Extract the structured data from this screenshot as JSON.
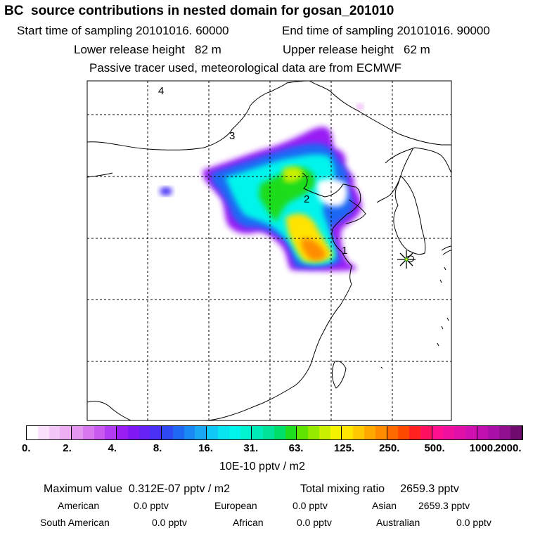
{
  "title": "BC  source contributions in nested domain for gosan_201010",
  "header": {
    "start": "Start time of sampling 20101016. 60000",
    "end": "End time of sampling 20101016. 90000",
    "lower": "Lower release height   82 m",
    "upper": "Upper release height   62 m",
    "tracer": "Passive tracer used, meteorological data are from ECMWF"
  },
  "map": {
    "markers": [
      "1",
      "2",
      "3",
      "4"
    ],
    "receptor_icon": "star-marker-icon"
  },
  "colorbar": {
    "ticks": [
      "0.",
      "2.",
      "4.",
      "8.",
      "16.",
      "31.",
      "63.",
      "125.",
      "250.",
      "500.",
      "1000.",
      "2000."
    ],
    "unit": "10E-10 pptv / m2",
    "colors": [
      [
        "#ffffff",
        "#fae0fb",
        "#f4c8f6",
        "#eeaff2"
      ],
      [
        "#e596f0",
        "#d878f0",
        "#c85af0",
        "#b23cf2"
      ],
      [
        "#9a1ef4",
        "#8018f4",
        "#6622f4",
        "#4a30f4"
      ],
      [
        "#2e48f4",
        "#1e68f4",
        "#1a88f4",
        "#1aa8f4"
      ],
      [
        "#10c8f4",
        "#08e4f0",
        "#00f4ec",
        "#00f2d0"
      ],
      [
        "#00eab8",
        "#00e49a",
        "#00de6a",
        "#1edc1e"
      ],
      [
        "#5ee400",
        "#96ea00",
        "#c8f000",
        "#f4f400"
      ],
      [
        "#ffe400",
        "#ffc800",
        "#ffa800",
        "#ff8c00"
      ],
      [
        "#ff6a00",
        "#ff4800",
        "#ff2020",
        "#ff1060"
      ],
      [
        "#ff1090",
        "#f010a0",
        "#e010a8",
        "#d010b0"
      ],
      [
        "#c010b0",
        "#a810a8",
        "#901090",
        "#700c70"
      ]
    ]
  },
  "stats": {
    "max": "Maximum value  0.312E-07 pptv / m2",
    "total": "Total mixing ratio     2659.3 pptv",
    "rows": [
      [
        {
          "label": "American",
          "value": "0.0 pptv"
        },
        {
          "label": "European",
          "value": "0.0 pptv"
        },
        {
          "label": "Asian",
          "value": "2659.3 pptv"
        }
      ],
      [
        {
          "label": "South American",
          "value": "0.0 pptv"
        },
        {
          "label": "African",
          "value": "0.0 pptv"
        },
        {
          "label": "Australian",
          "value": "0.0 pptv"
        }
      ]
    ]
  }
}
